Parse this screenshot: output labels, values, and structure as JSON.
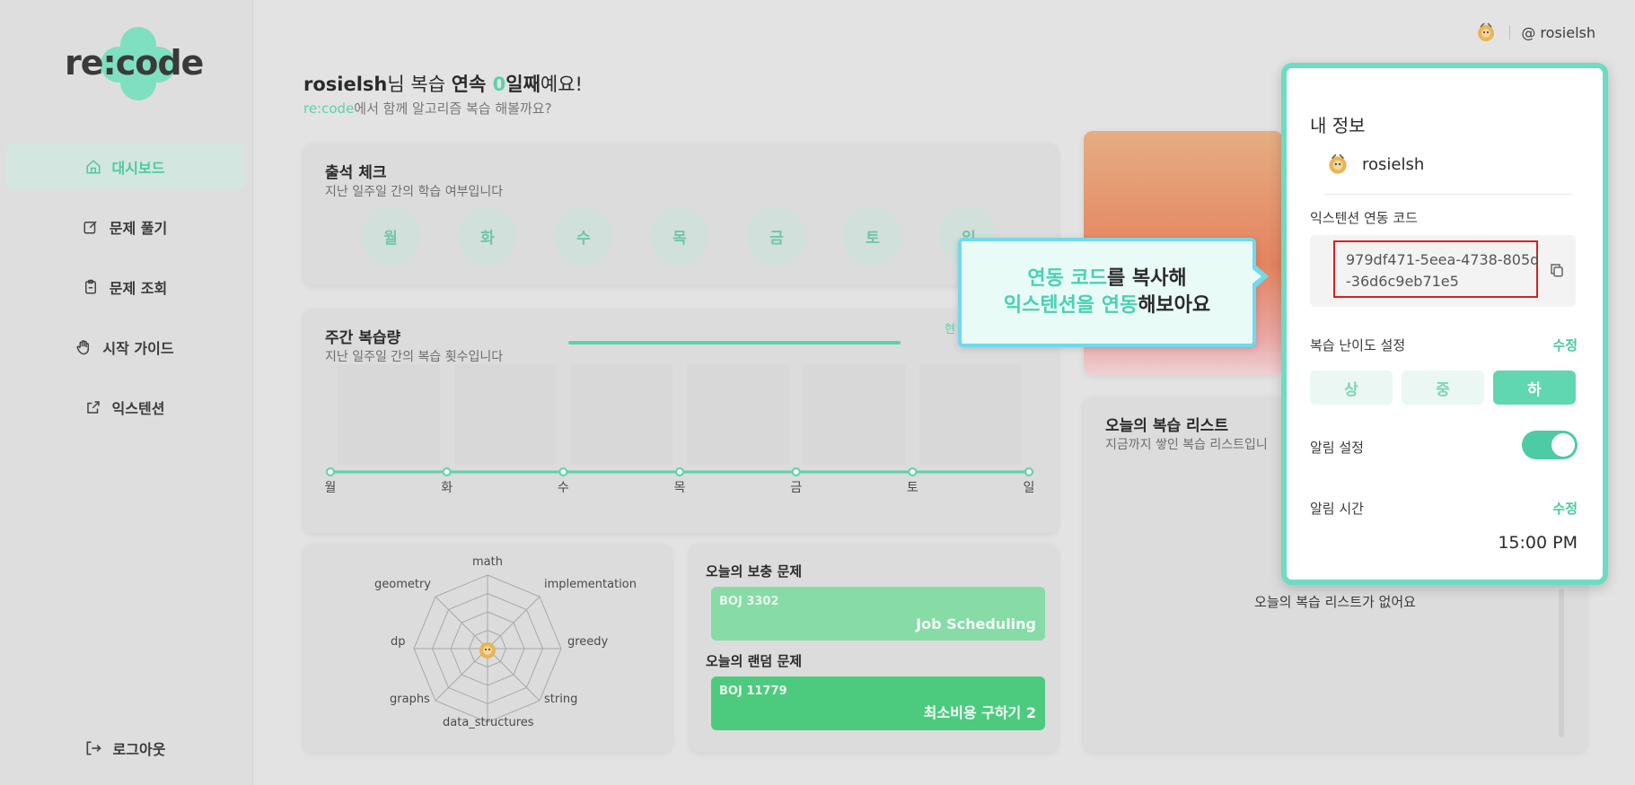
{
  "brand": {
    "logo_text": "re:code",
    "accent": "#5ad3a7"
  },
  "sidebar": {
    "items": [
      {
        "label": "대시보드",
        "icon": "home-icon",
        "active": true
      },
      {
        "label": "문제 풀기",
        "icon": "edit-icon",
        "active": false
      },
      {
        "label": "문제 조회",
        "icon": "clipboard-icon",
        "active": false
      },
      {
        "label": "시작 가이드",
        "icon": "hand-icon",
        "active": false
      },
      {
        "label": "익스텐션",
        "icon": "external-link-icon",
        "active": false
      }
    ],
    "logout_label": "로그아웃"
  },
  "header": {
    "username": "@ rosielsh"
  },
  "greeting": {
    "name": "rosielsh",
    "t1": "님 복습 ",
    "t2": "연속 ",
    "streak": "0",
    "t3": "일째",
    "t4": "예요!",
    "sub_brand": "re:code",
    "sub_text": "에서 함께 알고리즘 복습 해볼까요?"
  },
  "attendance": {
    "title": "출석 체크",
    "subtitle": "지난 일주일 간의 학습 여부입니다",
    "days": [
      "월",
      "화",
      "수",
      "목",
      "금",
      "토",
      "일"
    ]
  },
  "weekly": {
    "title": "주간 복습량",
    "subtitle": "지난 일주일 간의 복습 횟수입니다",
    "legend_partial": "현"
  },
  "chart_data": {
    "type": "line",
    "categories": [
      "월",
      "화",
      "수",
      "목",
      "금",
      "토",
      "일"
    ],
    "values": [
      0,
      0,
      0,
      0,
      0,
      0,
      0
    ],
    "series_color": "#5ad3a7"
  },
  "radar": {
    "labels": [
      "math",
      "implementation",
      "greedy",
      "string",
      "data_structures",
      "graphs",
      "dp",
      "geometry"
    ]
  },
  "problems": {
    "supplement_title": "오늘의 보충 문제",
    "supplement": {
      "code": "BOJ 3302",
      "name": "Job Scheduling"
    },
    "random_title": "오늘의 랜덤 문제",
    "random": {
      "code": "BOJ 11779",
      "name": "최소비용 구하기 2"
    }
  },
  "tooltip": {
    "line1_accent": "연동 코드",
    "line1_rest": "를 복사해",
    "line2_accent": "익스텐션을 연동",
    "line2_rest": "해보아요"
  },
  "panel": {
    "title": "내 정보",
    "username": "rosielsh",
    "ext_code_label": "익스텐션 연동 코드",
    "ext_code": "979df471-5eea-4738-805d-36d6c9eb71e5",
    "difficulty_label": "복습 난이도 설정",
    "edit_label": "수정",
    "difficulty_options": [
      "상",
      "중",
      "하"
    ],
    "difficulty_selected": "하",
    "alarm_label": "알림 설정",
    "alarm_on": true,
    "alarm_time_label": "알림 시간",
    "alarm_time": "15:00 PM"
  },
  "review": {
    "title": "오늘의 복습 리스트",
    "subtitle": "지금까지 쌓인 복습 리스트입니",
    "empty": "오늘의 복습 리스트가 없어요"
  }
}
